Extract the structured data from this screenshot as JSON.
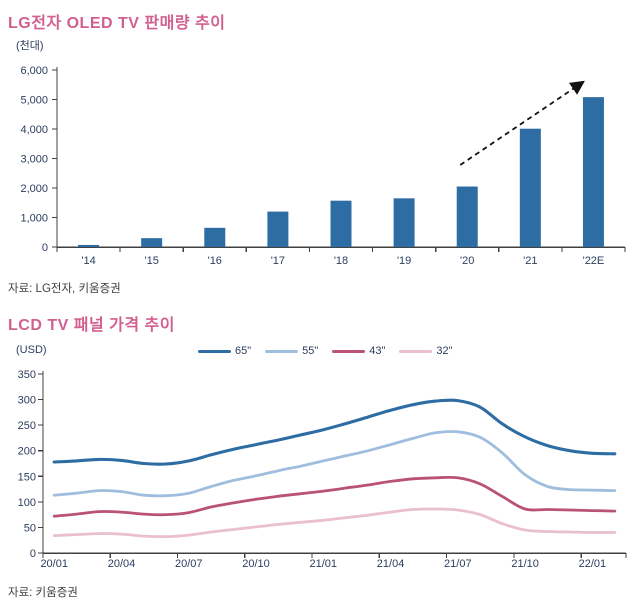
{
  "chart_data": [
    {
      "type": "bar",
      "title": "LG전자 OLED TV 판매량 추이",
      "unit": "(천대)",
      "source": "자료: LG전자, 키움증권",
      "categories": [
        "'14",
        "'15",
        "'16",
        "'17",
        "'18",
        "'19",
        "'20",
        "'21",
        "'22E"
      ],
      "values": [
        70,
        300,
        650,
        1200,
        1570,
        1650,
        2050,
        4010,
        5080
      ],
      "ylabel": "",
      "xlabel": "",
      "ylim": [
        0,
        6000
      ],
      "ytick_step": 1000,
      "grid": false,
      "bar_color": "#2E6DA4",
      "annotation": {
        "type": "dashed-arrow",
        "from": {
          "category_index": 6,
          "value": 2780
        },
        "to": {
          "category_index": 8,
          "value": 5600
        }
      }
    },
    {
      "type": "line",
      "title": "LCD TV 패널 가격 추이",
      "unit": "(USD)",
      "source": "자료: 키움증권",
      "x": [
        "20/01",
        "20/02",
        "20/03",
        "20/04",
        "20/05",
        "20/06",
        "20/07",
        "20/08",
        "20/09",
        "20/10",
        "20/11",
        "20/12",
        "21/01",
        "21/02",
        "21/03",
        "21/04",
        "21/05",
        "21/06",
        "21/07",
        "21/08",
        "21/09",
        "21/10",
        "21/11",
        "21/12",
        "22/01",
        "22/02"
      ],
      "xtick_labels": [
        "20/01",
        "20/04",
        "20/07",
        "20/10",
        "21/01",
        "21/04",
        "21/07",
        "21/10",
        "22/01"
      ],
      "ylim": [
        0,
        350
      ],
      "ytick_step": 50,
      "grid": false,
      "legend_position": "top-right",
      "series": [
        {
          "name": "65\"",
          "color": "#2E6DA4",
          "width": 3.1,
          "values": [
            178,
            180,
            183,
            181,
            175,
            174,
            180,
            192,
            203,
            212,
            221,
            231,
            241,
            253,
            266,
            279,
            290,
            297,
            298,
            285,
            252,
            227,
            210,
            200,
            195,
            194
          ]
        },
        {
          "name": "55\"",
          "color": "#9FBEDE",
          "width": 2.8,
          "values": [
            113,
            117,
            122,
            120,
            113,
            112,
            117,
            130,
            142,
            151,
            161,
            170,
            180,
            190,
            200,
            212,
            224,
            235,
            237,
            226,
            195,
            153,
            130,
            124,
            123,
            122
          ]
        },
        {
          "name": "43\"",
          "color": "#BA5277",
          "width": 2.8,
          "values": [
            72,
            76,
            81,
            80,
            76,
            75,
            79,
            90,
            98,
            105,
            111,
            116,
            121,
            127,
            133,
            140,
            145,
            147,
            147,
            135,
            110,
            86,
            85,
            84,
            83,
            82
          ]
        },
        {
          "name": "32\"",
          "color": "#EABFCE",
          "width": 2.8,
          "values": [
            34,
            36,
            38,
            37,
            33,
            32,
            35,
            41,
            46,
            51,
            56,
            60,
            64,
            69,
            74,
            80,
            85,
            86,
            84,
            75,
            57,
            45,
            42,
            41,
            40,
            40
          ]
        }
      ]
    }
  ],
  "style": {
    "title_color": "#D2608F",
    "axis_color": "#404040",
    "tick_label_color": "#2C3D5E",
    "arrow_color": "#111111"
  }
}
